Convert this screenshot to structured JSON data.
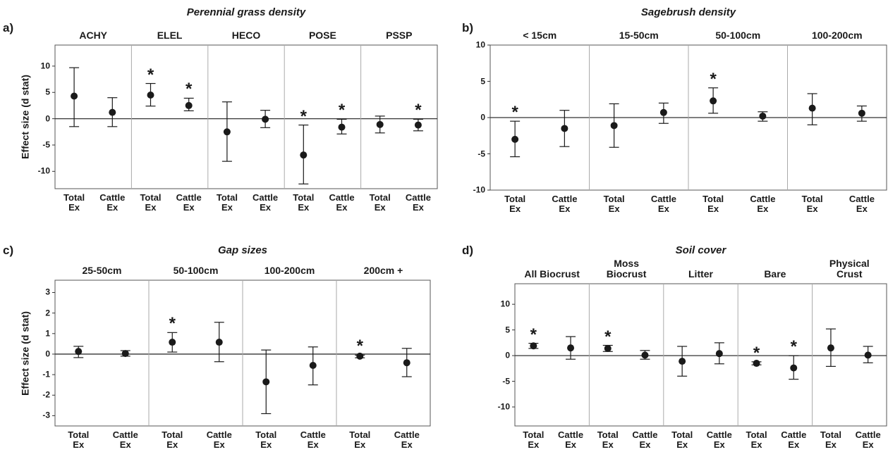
{
  "chart_data": [
    {
      "type": "errorbar",
      "panel_label": "a)",
      "title": "Perennial grass density",
      "ylabel": "Effect size (d stat)",
      "groups": [
        "ACHY",
        "ELEL",
        "HECO",
        "POSE",
        "PSSP"
      ],
      "categories": [
        "Total Ex",
        "Cattle Ex",
        "Total Ex",
        "Cattle Ex",
        "Total Ex",
        "Cattle Ex",
        "Total Ex",
        "Cattle Ex",
        "Total Ex",
        "Cattle Ex"
      ],
      "values": [
        4.3,
        1.2,
        4.5,
        2.5,
        -2.5,
        -0.1,
        -6.9,
        -1.6,
        -1.1,
        -1.2
      ],
      "ci_low": [
        -1.5,
        -1.5,
        2.4,
        1.5,
        -8.1,
        -1.7,
        -12.4,
        -2.9,
        -2.7,
        -2.3
      ],
      "ci_high": [
        9.7,
        4.0,
        6.7,
        3.9,
        3.2,
        1.6,
        -1.2,
        -0.1,
        0.5,
        -0.1
      ],
      "stars": [
        null,
        null,
        "*",
        "*",
        null,
        null,
        "*",
        "*",
        null,
        "*"
      ],
      "color": "#1a1a1a",
      "ylim": [
        -13.3,
        14
      ],
      "yticks": [
        -10,
        -5,
        0,
        5,
        10
      ]
    },
    {
      "type": "errorbar",
      "panel_label": "b)",
      "title": "Sagebrush density",
      "groups": [
        "< 15cm",
        "15-50cm",
        "50-100cm",
        "100-200cm"
      ],
      "categories": [
        "Total Ex",
        "Cattle Ex",
        "Total Ex",
        "Cattle Ex",
        "Total Ex",
        "Cattle Ex",
        "Total Ex",
        "Cattle Ex"
      ],
      "values": [
        -3.0,
        -1.5,
        -1.1,
        0.7,
        2.3,
        0.2,
        1.3,
        0.6
      ],
      "ci_low": [
        -5.4,
        -4.0,
        -4.1,
        -0.8,
        0.6,
        -0.5,
        -1.0,
        -0.5
      ],
      "ci_high": [
        -0.5,
        1.0,
        1.9,
        2.0,
        4.1,
        0.8,
        3.3,
        1.6
      ],
      "stars": [
        "*",
        null,
        null,
        null,
        "*",
        null,
        null,
        null
      ],
      "color": "#1a1a1a",
      "ylim": [
        -10,
        10
      ],
      "yticks": [
        -10,
        -5,
        0,
        5,
        10
      ]
    },
    {
      "type": "errorbar",
      "panel_label": "c)",
      "title": "Gap sizes",
      "ylabel": "Effect size (d stat)",
      "groups": [
        "25-50cm",
        "50-100cm",
        "100-200cm",
        "200cm +"
      ],
      "categories": [
        "Total Ex",
        "Cattle Ex",
        "Total Ex",
        "Cattle Ex",
        "Total Ex",
        "Cattle Ex",
        "Total Ex",
        "Cattle Ex"
      ],
      "values": [
        0.13,
        0.03,
        0.58,
        0.58,
        -1.35,
        -0.55,
        -0.1,
        -0.42
      ],
      "ci_low": [
        -0.17,
        -0.1,
        0.1,
        -0.37,
        -2.9,
        -1.5,
        -0.18,
        -1.1
      ],
      "ci_high": [
        0.38,
        0.17,
        1.05,
        1.55,
        0.2,
        0.35,
        -0.05,
        0.28
      ],
      "stars": [
        null,
        null,
        "*",
        null,
        null,
        null,
        "*",
        null
      ],
      "color": "#1a1a1a",
      "ylim": [
        -3.5,
        3.6
      ],
      "yticks": [
        -3,
        -2,
        -1,
        0,
        1,
        2,
        3
      ]
    },
    {
      "type": "errorbar",
      "panel_label": "d)",
      "title": "Soil cover",
      "groups": [
        "All Biocrust",
        "Moss Biocrust",
        "Litter",
        "Bare",
        "Physical Crust"
      ],
      "categories": [
        "Total Ex",
        "Cattle Ex",
        "Total Ex",
        "Cattle Ex",
        "Total Ex",
        "Cattle Ex",
        "Total Ex",
        "Cattle Ex",
        "Total Ex",
        "Cattle Ex"
      ],
      "values": [
        1.9,
        1.5,
        1.4,
        0.1,
        -1.1,
        0.4,
        -1.5,
        -2.4,
        1.5,
        0.1
      ],
      "ci_low": [
        1.4,
        -0.7,
        0.8,
        -0.7,
        -4.0,
        -1.6,
        -1.8,
        -4.6,
        -2.1,
        -1.4
      ],
      "ci_high": [
        2.4,
        3.7,
        2.0,
        1.0,
        1.8,
        2.5,
        -1.2,
        0.0,
        5.2,
        1.8
      ],
      "stars": [
        "*",
        null,
        "*",
        null,
        null,
        null,
        "*",
        "*",
        null,
        null
      ],
      "color": "#1a1a1a",
      "ylim": [
        -13.7,
        14
      ],
      "yticks": [
        -10,
        -5,
        0,
        5,
        10
      ]
    }
  ]
}
